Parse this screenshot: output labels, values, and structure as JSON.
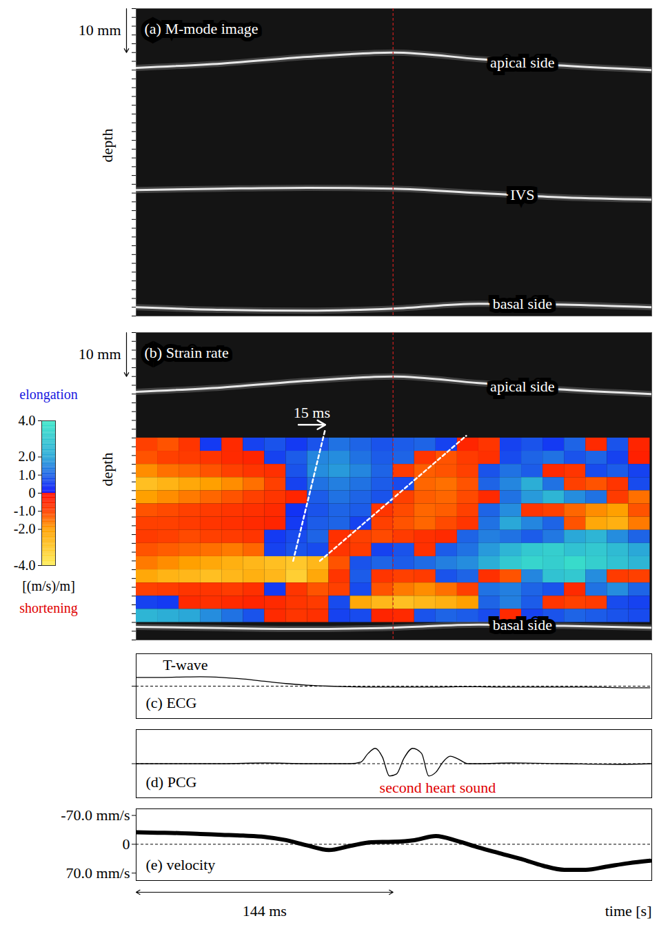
{
  "chart_data": [
    {
      "type": "mmode",
      "title": "(a) M-mode image",
      "y_label": "depth",
      "xlim": [
        0,
        289
      ],
      "ylim": [
        70,
        0
      ],
      "yticks": [
        0,
        2,
        4,
        6,
        8,
        10,
        12,
        14,
        16,
        18,
        20,
        22,
        24,
        26,
        28,
        30,
        32,
        34,
        36,
        38,
        40,
        42,
        44,
        46,
        48,
        50,
        52,
        54,
        56,
        58,
        60,
        62,
        64,
        66,
        68,
        70
      ],
      "tick_labels": false,
      "scale_label": "10 mm",
      "scale_length": 10,
      "marker_time": 144,
      "series": [
        {
          "name": "apical side",
          "color": "#e8e8e8",
          "x": [
            0,
            48,
            96,
            144,
            192,
            240,
            289
          ],
          "values": [
            13.5,
            12.5,
            11,
            10,
            11.5,
            13,
            14
          ]
        },
        {
          "name": "IVS",
          "color": "#e8e8e8",
          "x": [
            0,
            48,
            96,
            144,
            192,
            240,
            289
          ],
          "values": [
            41.3,
            41.0,
            40.8,
            41,
            42,
            43,
            43.5
          ]
        },
        {
          "name": "basal side",
          "color": "#e8e8e8",
          "x": [
            0,
            48,
            96,
            144,
            192,
            240,
            289
          ],
          "values": [
            68,
            68.6,
            68.8,
            68.3,
            67.2,
            67.4,
            68
          ]
        }
      ]
    },
    {
      "type": "heatmap",
      "title": "(b) Strain rate",
      "y_label": "depth",
      "xlim": [
        0,
        289
      ],
      "ylim": [
        70,
        0
      ],
      "yticks": [
        0,
        2,
        4,
        6,
        8,
        10,
        12,
        14,
        16,
        18,
        20,
        22,
        24,
        26,
        28,
        30,
        32,
        34,
        36,
        38,
        40,
        42,
        44,
        46,
        48,
        50,
        52,
        54,
        56,
        58,
        60,
        62,
        64,
        66,
        68,
        70
      ],
      "tick_labels": false,
      "scale_label": "10 mm",
      "scale_length": 10,
      "marker_time": 144,
      "series": [
        {
          "name": "apical side",
          "color": "#e8e8e8",
          "x": [
            0,
            48,
            96,
            144,
            192,
            240,
            289
          ],
          "values": [
            13.5,
            12.5,
            11,
            10,
            11.5,
            13,
            14
          ]
        },
        {
          "name": "basal side",
          "color": "#e8e8e8",
          "x": [
            0,
            48,
            96,
            144,
            192,
            240,
            289
          ],
          "values": [
            67,
            67.3,
            67.5,
            67.2,
            66.5,
            66.8,
            67.2
          ]
        }
      ],
      "x_bins": [
        0,
        12,
        24,
        36,
        48,
        60,
        72,
        84,
        96,
        108,
        120,
        132,
        144,
        156,
        168,
        180,
        192,
        204,
        216,
        228,
        240,
        252,
        264,
        276,
        288
      ],
      "y_bins": [
        24,
        27,
        30,
        33,
        36,
        39,
        42,
        45,
        48,
        51,
        54,
        57,
        60,
        63,
        66
      ],
      "values": [
        [
          -1.0,
          -1.2,
          -0.8,
          0.5,
          -0.6,
          0.6,
          0.8,
          0.5,
          0.8,
          1.2,
          1.0,
          0.8,
          0.9,
          1.0,
          0.6,
          -0.5,
          -0.8,
          0.6,
          0.8,
          0.5,
          1.0,
          -0.6,
          0.8,
          -0.5
        ],
        [
          -1.2,
          -1.0,
          -0.9,
          -0.8,
          -0.6,
          -0.5,
          0.6,
          0.9,
          1.5,
          1.6,
          1.2,
          0.9,
          1.0,
          -0.8,
          -1.2,
          -0.9,
          -0.7,
          0.7,
          1.0,
          1.2,
          0.8,
          1.0,
          0.6,
          -0.4
        ],
        [
          -1.8,
          -1.5,
          -1.4,
          -1.2,
          -1.0,
          -0.8,
          -0.7,
          0.8,
          1.6,
          1.8,
          1.5,
          1.0,
          -0.9,
          -1.3,
          -1.2,
          -1.0,
          0.8,
          1.2,
          0.9,
          -0.6,
          -0.8,
          0.7,
          0.9,
          0.6
        ],
        [
          -2.8,
          -2.5,
          -2.2,
          -2.0,
          -1.8,
          -1.5,
          -1.0,
          0.6,
          1.2,
          1.4,
          1.2,
          0.9,
          0.7,
          -1.4,
          -1.5,
          -1.2,
          1.0,
          1.5,
          2.2,
          1.2,
          -1.0,
          -1.2,
          -0.8,
          0.7
        ],
        [
          -2.0,
          -1.8,
          -1.6,
          -1.4,
          -1.2,
          -1.0,
          -0.8,
          -0.5,
          0.9,
          1.2,
          1.0,
          0.8,
          -1.0,
          -1.3,
          -1.4,
          -1.1,
          -0.6,
          1.2,
          1.8,
          2.4,
          1.6,
          1.2,
          -0.9,
          -1.5
        ],
        [
          -1.2,
          -1.1,
          -1.0,
          -0.9,
          -0.8,
          -0.7,
          -0.6,
          0.4,
          0.8,
          1.0,
          0.9,
          -0.8,
          -1.1,
          -1.4,
          -1.3,
          -1.0,
          1.0,
          1.6,
          -0.8,
          -1.0,
          -1.4,
          -1.8,
          -2.0,
          -1.2
        ],
        [
          -1.0,
          -1.0,
          -0.9,
          -0.8,
          -0.7,
          -0.6,
          -0.5,
          0.5,
          0.9,
          1.0,
          0.6,
          -1.0,
          -1.2,
          -1.4,
          -1.1,
          -0.8,
          1.2,
          2.0,
          1.5,
          1.0,
          -1.2,
          -2.2,
          -2.4,
          -1.6
        ],
        [
          -0.9,
          -1.0,
          -1.1,
          -1.0,
          -0.9,
          -0.8,
          0.5,
          0.7,
          1.0,
          -0.7,
          -1.0,
          -1.1,
          -0.9,
          -0.7,
          -0.6,
          1.0,
          1.4,
          1.2,
          0.9,
          1.3,
          2.0,
          2.4,
          1.6,
          1.0
        ],
        [
          -1.2,
          -1.3,
          -1.4,
          -1.5,
          -1.6,
          -1.4,
          0.6,
          0.8,
          0.7,
          -0.8,
          -0.9,
          0.6,
          0.8,
          -0.7,
          0.9,
          1.2,
          1.8,
          2.4,
          3.0,
          3.2,
          2.8,
          3.0,
          2.6,
          2.0
        ],
        [
          -1.6,
          -1.8,
          -2.0,
          -2.2,
          -2.4,
          -2.6,
          -2.8,
          -3.0,
          -2.6,
          -1.2,
          0.8,
          1.0,
          0.9,
          1.1,
          1.4,
          1.6,
          2.2,
          3.0,
          3.4,
          3.2,
          3.6,
          3.2,
          2.8,
          2.4
        ],
        [
          -2.2,
          -2.5,
          -2.6,
          -2.8,
          -2.6,
          -2.4,
          -2.6,
          -3.2,
          -2.2,
          -0.8,
          0.9,
          -0.8,
          -1.0,
          -0.9,
          0.8,
          1.0,
          -0.7,
          -1.2,
          1.5,
          2.8,
          3.0,
          1.6,
          -0.9,
          -1.0
        ],
        [
          -1.0,
          -0.9,
          -0.8,
          -0.8,
          -0.9,
          -0.7,
          0.5,
          -0.8,
          -1.2,
          -1.0,
          0.7,
          -1.2,
          -1.6,
          -1.8,
          -1.5,
          -1.0,
          1.2,
          1.4,
          1.0,
          0.8,
          -0.6,
          1.2,
          1.6,
          1.0
        ],
        [
          0.6,
          0.5,
          -0.6,
          -0.7,
          -0.6,
          -0.5,
          -0.6,
          -0.8,
          -0.9,
          0.7,
          -2.2,
          -2.6,
          -2.8,
          -2.6,
          -2.4,
          -2.0,
          1.0,
          1.4,
          0.9,
          -0.8,
          -1.0,
          -0.9,
          0.7,
          0.6
        ],
        [
          2.4,
          2.2,
          2.0,
          1.6,
          1.2,
          0.8,
          -0.6,
          -0.8,
          -0.7,
          0.6,
          0.7,
          -0.5,
          -0.6,
          0.8,
          1.0,
          0.9,
          0.7,
          -0.6,
          0.6,
          0.8,
          1.0,
          0.9,
          0.8,
          0.7
        ]
      ],
      "colorbar": {
        "range": [
          -4,
          4
        ],
        "ticks": [
          {
            "value": 4,
            "label": "4.0"
          },
          {
            "value": 2,
            "label": "2.0"
          },
          {
            "value": 1,
            "label": "1.0"
          },
          0,
          {
            "value": -1,
            "label": "-1.0"
          },
          {
            "value": -2,
            "label": "-2.0"
          },
          {
            "value": -4,
            "label": "-4.0"
          }
        ],
        "stops": [
          -4,
          -2,
          -1,
          0,
          0,
          1,
          2,
          4
        ],
        "colors": [
          "#ffee55",
          "#ffa000",
          "#ff4000",
          "#ff0a00",
          "#0a10ff",
          "#1e64e6",
          "#2aa8d8",
          "#3ce8c8"
        ],
        "label": "[(m/s)/m]",
        "top_label": "elongation",
        "bottom_label": "shortening"
      },
      "propagation_lines": [
        {
          "x": [
            88,
            106
          ],
          "values": [
            52,
            22
          ]
        },
        {
          "x": [
            103,
            185
          ],
          "values": [
            52,
            23.5
          ]
        }
      ],
      "arrow": {
        "label": "15 ms",
        "x1": 91,
        "x2": 106,
        "y": 21
      }
    },
    {
      "type": "line",
      "title": "(c) ECG",
      "xlim": [
        0,
        289
      ],
      "ylim": [
        -1,
        1
      ],
      "yticks": [
        0
      ],
      "tick_labels": false,
      "grid": true,
      "series": [
        {
          "color": "black",
          "x": [
            0,
            12,
            24,
            36,
            48,
            60,
            72,
            84,
            96,
            108,
            120,
            132,
            144,
            156,
            168,
            180,
            192,
            204,
            216,
            228,
            240,
            252,
            264,
            276,
            288
          ],
          "values": [
            0.27,
            0.27,
            0.28,
            0.29,
            0.27,
            0.22,
            0.15,
            0.08,
            0.03,
            0.0,
            -0.02,
            -0.03,
            -0.03,
            -0.03,
            -0.03,
            -0.02,
            -0.02,
            -0.03,
            -0.03,
            -0.03,
            -0.03,
            -0.03,
            -0.04,
            -0.05,
            -0.05
          ]
        }
      ],
      "annotations": [
        {
          "text": "T-wave",
          "x": 15,
          "y": 0.65,
          "color": "black"
        }
      ]
    },
    {
      "type": "line",
      "title": "(d) PCG",
      "xlim": [
        0,
        289
      ],
      "ylim": [
        -1,
        1
      ],
      "yticks": [
        0
      ],
      "tick_labels": false,
      "grid": true,
      "series": [
        {
          "color": "black",
          "x": [
            0,
            24,
            48,
            72,
            96,
            110,
            120,
            126,
            130,
            134,
            138,
            142,
            146,
            150,
            155,
            160,
            164,
            168,
            172,
            176,
            180,
            186,
            192,
            210,
            240,
            270,
            289
          ],
          "values": [
            0,
            0,
            0,
            0.02,
            0,
            0,
            0,
            0.05,
            0.3,
            0.45,
            0.2,
            -0.36,
            -0.3,
            0.15,
            0.45,
            0.3,
            -0.36,
            -0.25,
            0.05,
            0.22,
            0.15,
            0,
            0,
            0.02,
            0,
            -0.02,
            0
          ]
        }
      ],
      "annotations": [
        {
          "text": "second heart sound",
          "x": 169,
          "y": -0.7,
          "color": "#e00000"
        }
      ]
    },
    {
      "type": "line",
      "title": "(e) velocity",
      "xlim": [
        0,
        289
      ],
      "ylim": [
        88,
        -86
      ],
      "yticks": [
        {
          "value": -70,
          "label": "-70.0 mm/s"
        },
        0,
        {
          "value": 70,
          "label": "70.0 mm/s"
        }
      ],
      "grid": true,
      "x_label": "time [s]",
      "span": {
        "label": "144 ms",
        "x1": 0,
        "x2": 144
      },
      "series": [
        {
          "color": "black",
          "x": [
            0,
            12,
            24,
            36,
            48,
            60,
            72,
            84,
            96,
            108,
            120,
            132,
            144,
            156,
            168,
            180,
            192,
            204,
            216,
            228,
            240,
            252,
            264,
            276,
            288
          ],
          "values": [
            -29,
            -28,
            -27,
            -25,
            -23,
            -21,
            -18,
            -10,
            3,
            14,
            4,
            -5,
            -6,
            -10,
            -20,
            -8,
            8,
            22,
            36,
            52,
            62,
            62,
            54,
            46,
            40
          ]
        }
      ]
    }
  ]
}
